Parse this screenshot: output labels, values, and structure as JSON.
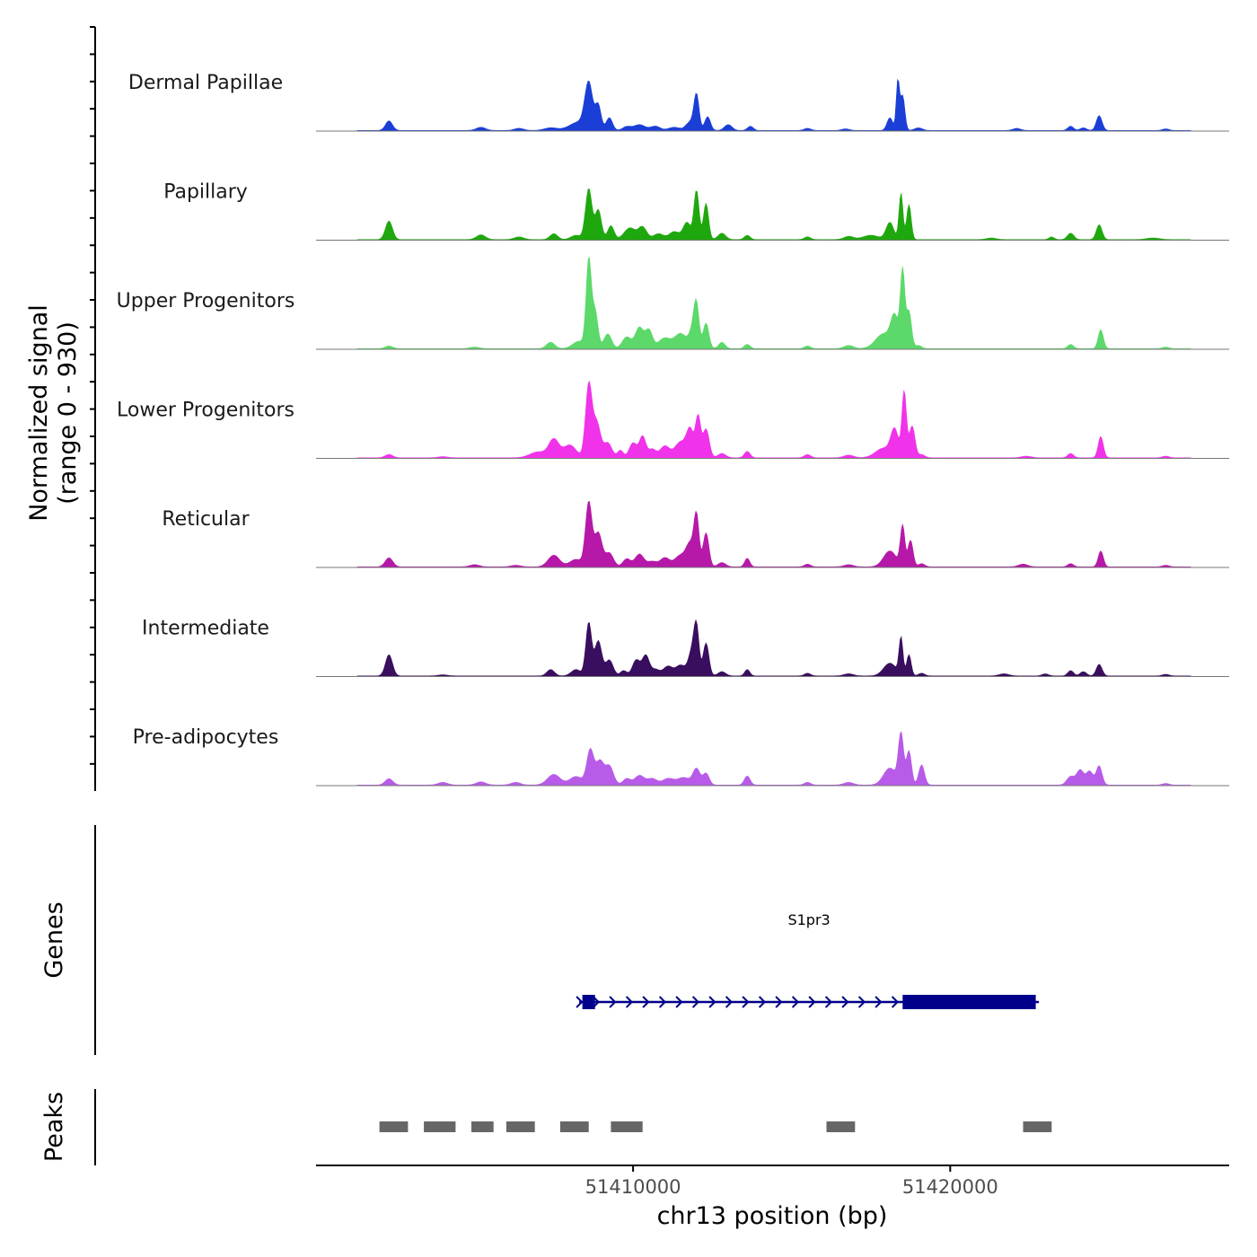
{
  "chart_data": {
    "type": "area",
    "title": "",
    "y_title_line1": "Normalized signal",
    "y_title_line2": "(range 0 - 930)",
    "y_range": [
      0,
      930
    ],
    "x_title": "chr13 position (bp)",
    "x_range": [
      51400000,
      51428800
    ],
    "x_ticks": [
      51410000,
      51420000
    ],
    "x_tick_labels": [
      "51410000",
      "51420000"
    ],
    "genes_label": "Genes",
    "peaks_label": "Peaks",
    "tracks": [
      {
        "name": "Dermal Papillae",
        "color": "#1a3ed6",
        "peaks": [
          [
            51402300,
            90,
            110
          ],
          [
            51405200,
            30,
            150
          ],
          [
            51406400,
            20,
            150
          ],
          [
            51407400,
            25,
            200
          ],
          [
            51408300,
            80,
            300
          ],
          [
            51408600,
            420,
            120
          ],
          [
            51408900,
            230,
            90
          ],
          [
            51409250,
            120,
            100
          ],
          [
            51409800,
            35,
            130
          ],
          [
            51410200,
            55,
            180
          ],
          [
            51410700,
            40,
            150
          ],
          [
            51411300,
            30,
            180
          ],
          [
            51411800,
            80,
            130
          ],
          [
            51412000,
            330,
            80
          ],
          [
            51412350,
            130,
            90
          ],
          [
            51413000,
            55,
            120
          ],
          [
            51413700,
            40,
            90
          ],
          [
            51415500,
            20,
            110
          ],
          [
            51416700,
            15,
            120
          ],
          [
            51418100,
            120,
            90
          ],
          [
            51418350,
            460,
            50
          ],
          [
            51418500,
            330,
            70
          ],
          [
            51419000,
            25,
            120
          ],
          [
            51422100,
            20,
            120
          ],
          [
            51423800,
            40,
            90
          ],
          [
            51424200,
            25,
            100
          ],
          [
            51424700,
            140,
            90
          ],
          [
            51426800,
            15,
            100
          ]
        ]
      },
      {
        "name": "Papillary",
        "color": "#1fa80e",
        "peaks": [
          [
            51402300,
            175,
            110
          ],
          [
            51405200,
            45,
            140
          ],
          [
            51406400,
            25,
            150
          ],
          [
            51407500,
            55,
            120
          ],
          [
            51408200,
            40,
            160
          ],
          [
            51408600,
            480,
            100
          ],
          [
            51408900,
            280,
            100
          ],
          [
            51409300,
            130,
            100
          ],
          [
            51409900,
            110,
            180
          ],
          [
            51410300,
            115,
            130
          ],
          [
            51410800,
            55,
            160
          ],
          [
            51411300,
            75,
            160
          ],
          [
            51411700,
            160,
            120
          ],
          [
            51412000,
            460,
            80
          ],
          [
            51412300,
            340,
            80
          ],
          [
            51412800,
            60,
            120
          ],
          [
            51413600,
            40,
            90
          ],
          [
            51415500,
            25,
            100
          ],
          [
            51416800,
            30,
            150
          ],
          [
            51417500,
            40,
            250
          ],
          [
            51418100,
            160,
            120
          ],
          [
            51418450,
            440,
            60
          ],
          [
            51418700,
            330,
            70
          ],
          [
            51421300,
            15,
            150
          ],
          [
            51423200,
            25,
            80
          ],
          [
            51423800,
            60,
            100
          ],
          [
            51424700,
            140,
            90
          ],
          [
            51426400,
            15,
            200
          ]
        ]
      },
      {
        "name": "Upper Progenitors",
        "color": "#5cd96a",
        "peaks": [
          [
            51402300,
            25,
            120
          ],
          [
            51405000,
            15,
            150
          ],
          [
            51407400,
            60,
            130
          ],
          [
            51408300,
            70,
            200
          ],
          [
            51408600,
            820,
            80
          ],
          [
            51408800,
            350,
            90
          ],
          [
            51409200,
            140,
            120
          ],
          [
            51409800,
            110,
            140
          ],
          [
            51410200,
            200,
            130
          ],
          [
            51410500,
            170,
            110
          ],
          [
            51411000,
            100,
            200
          ],
          [
            51411500,
            140,
            180
          ],
          [
            51411900,
            180,
            120
          ],
          [
            51412000,
            330,
            80
          ],
          [
            51412300,
            240,
            90
          ],
          [
            51412800,
            60,
            100
          ],
          [
            51413600,
            40,
            90
          ],
          [
            51415500,
            25,
            100
          ],
          [
            51416800,
            30,
            150
          ],
          [
            51417900,
            140,
            250
          ],
          [
            51418250,
            280,
            120
          ],
          [
            51418500,
            720,
            70
          ],
          [
            51418700,
            350,
            80
          ],
          [
            51419000,
            30,
            100
          ],
          [
            51423800,
            40,
            90
          ],
          [
            51424750,
            180,
            80
          ],
          [
            51426800,
            15,
            100
          ]
        ]
      },
      {
        "name": "Lower Progenitors",
        "color": "#f033ea",
        "peaks": [
          [
            51402300,
            30,
            120
          ],
          [
            51404000,
            10,
            150
          ],
          [
            51407000,
            55,
            250
          ],
          [
            51407500,
            170,
            160
          ],
          [
            51408000,
            120,
            200
          ],
          [
            51408600,
            680,
            100
          ],
          [
            51408850,
            330,
            120
          ],
          [
            51409200,
            140,
            130
          ],
          [
            51409600,
            70,
            90
          ],
          [
            51410000,
            140,
            120
          ],
          [
            51410300,
            200,
            100
          ],
          [
            51410600,
            80,
            120
          ],
          [
            51411000,
            110,
            150
          ],
          [
            51411500,
            150,
            180
          ],
          [
            51411800,
            250,
            110
          ],
          [
            51412050,
            380,
            80
          ],
          [
            51412300,
            270,
            100
          ],
          [
            51412800,
            40,
            120
          ],
          [
            51413600,
            60,
            90
          ],
          [
            51415500,
            30,
            100
          ],
          [
            51416800,
            25,
            150
          ],
          [
            51417900,
            90,
            250
          ],
          [
            51418250,
            250,
            120
          ],
          [
            51418550,
            620,
            70
          ],
          [
            51418800,
            300,
            90
          ],
          [
            51419100,
            30,
            100
          ],
          [
            51422400,
            15,
            150
          ],
          [
            51423800,
            40,
            90
          ],
          [
            51424750,
            200,
            80
          ],
          [
            51426800,
            15,
            100
          ]
        ]
      },
      {
        "name": "Reticular",
        "color": "#b619a8",
        "peaks": [
          [
            51402300,
            85,
            120
          ],
          [
            51405000,
            20,
            150
          ],
          [
            51406300,
            15,
            150
          ],
          [
            51407500,
            110,
            180
          ],
          [
            51408200,
            70,
            200
          ],
          [
            51408600,
            600,
            100
          ],
          [
            51408900,
            320,
            120
          ],
          [
            51409250,
            130,
            130
          ],
          [
            51409800,
            75,
            120
          ],
          [
            51410200,
            120,
            140
          ],
          [
            51410600,
            50,
            140
          ],
          [
            51411000,
            85,
            150
          ],
          [
            51411500,
            110,
            180
          ],
          [
            51411800,
            200,
            120
          ],
          [
            51412000,
            470,
            80
          ],
          [
            51412300,
            320,
            90
          ],
          [
            51412800,
            40,
            120
          ],
          [
            51413600,
            80,
            80
          ],
          [
            51415500,
            25,
            100
          ],
          [
            51416800,
            20,
            150
          ],
          [
            51418100,
            150,
            200
          ],
          [
            51418500,
            380,
            70
          ],
          [
            51418750,
            250,
            80
          ],
          [
            51419100,
            30,
            100
          ],
          [
            51422300,
            25,
            150
          ],
          [
            51423800,
            30,
            90
          ],
          [
            51424750,
            150,
            80
          ],
          [
            51426800,
            15,
            100
          ]
        ]
      },
      {
        "name": "Intermediate",
        "color": "#3a0e5e",
        "peaks": [
          [
            51402300,
            200,
            110
          ],
          [
            51404000,
            10,
            150
          ],
          [
            51407400,
            60,
            120
          ],
          [
            51408200,
            60,
            150
          ],
          [
            51408600,
            500,
            90
          ],
          [
            51408900,
            330,
            110
          ],
          [
            51409250,
            150,
            120
          ],
          [
            51409700,
            50,
            100
          ],
          [
            51410100,
            150,
            120
          ],
          [
            51410400,
            190,
            110
          ],
          [
            51410700,
            60,
            130
          ],
          [
            51411100,
            90,
            150
          ],
          [
            51411500,
            100,
            150
          ],
          [
            51411850,
            220,
            110
          ],
          [
            51412000,
            430,
            80
          ],
          [
            51412300,
            310,
            90
          ],
          [
            51412800,
            40,
            120
          ],
          [
            51413600,
            60,
            80
          ],
          [
            51415500,
            25,
            100
          ],
          [
            51416800,
            20,
            150
          ],
          [
            51418100,
            120,
            200
          ],
          [
            51418450,
            350,
            60
          ],
          [
            51418700,
            200,
            70
          ],
          [
            51419100,
            25,
            100
          ],
          [
            51421700,
            20,
            150
          ],
          [
            51423000,
            20,
            100
          ],
          [
            51423800,
            50,
            90
          ],
          [
            51424200,
            40,
            100
          ],
          [
            51424700,
            110,
            90
          ],
          [
            51426800,
            15,
            100
          ]
        ]
      },
      {
        "name": "Pre-adipocytes",
        "color": "#b85be8",
        "peaks": [
          [
            51402300,
            60,
            120
          ],
          [
            51404000,
            25,
            150
          ],
          [
            51405200,
            30,
            150
          ],
          [
            51406300,
            25,
            150
          ],
          [
            51407500,
            100,
            200
          ],
          [
            51408200,
            80,
            200
          ],
          [
            51408650,
            330,
            110
          ],
          [
            51408950,
            220,
            120
          ],
          [
            51409250,
            180,
            130
          ],
          [
            51409800,
            60,
            120
          ],
          [
            51410200,
            90,
            150
          ],
          [
            51410600,
            60,
            150
          ],
          [
            51411100,
            60,
            180
          ],
          [
            51411600,
            70,
            200
          ],
          [
            51412000,
            150,
            110
          ],
          [
            51412300,
            110,
            100
          ],
          [
            51413600,
            85,
            90
          ],
          [
            51415500,
            25,
            100
          ],
          [
            51416800,
            25,
            150
          ],
          [
            51418100,
            160,
            200
          ],
          [
            51418450,
            470,
            80
          ],
          [
            51418700,
            320,
            80
          ],
          [
            51419100,
            190,
            90
          ],
          [
            51423800,
            80,
            120
          ],
          [
            51424100,
            140,
            110
          ],
          [
            51424400,
            130,
            110
          ],
          [
            51424700,
            180,
            90
          ],
          [
            51426800,
            15,
            100
          ]
        ]
      }
    ],
    "gene": {
      "name": "S1pr3",
      "strand": "+",
      "start": 51408300,
      "end": 51422800,
      "exons": [
        [
          51408400,
          51408800
        ],
        [
          51418500,
          51422700
        ]
      ]
    },
    "peak_regions": [
      [
        51402000,
        51402900
      ],
      [
        51403400,
        51404400
      ],
      [
        51404900,
        51405600
      ],
      [
        51406000,
        51406900
      ],
      [
        51407700,
        51408600
      ],
      [
        51409300,
        51410300
      ],
      [
        51416100,
        51417000
      ],
      [
        51422300,
        51423200
      ]
    ]
  }
}
